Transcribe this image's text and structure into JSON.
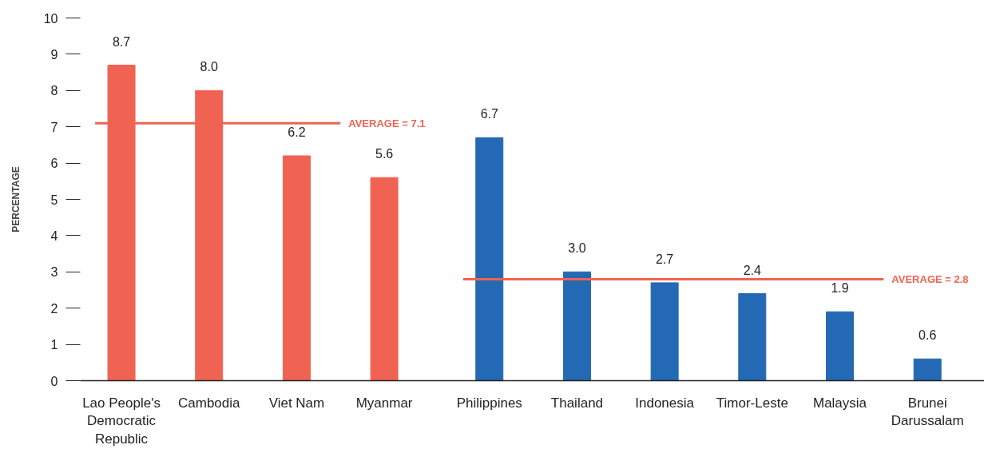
{
  "chart_data": {
    "type": "bar",
    "ylabel": "PERCENTAGE",
    "categories": [
      "Lao People's\nDemocratic\nRepublic",
      "Cambodia",
      "Viet Nam",
      "Myanmar",
      "Philippines",
      "Thailand",
      "Indonesia",
      "Timor-Leste",
      "Malaysia",
      "Brunei\nDarussalam"
    ],
    "series": [
      {
        "color": "#f06352",
        "values": [
          8.7,
          8.0,
          6.2,
          5.6,
          null,
          null,
          null,
          null,
          null,
          null
        ],
        "value_labels": [
          "8.7",
          "8.0",
          "6.2",
          "5.6",
          null,
          null,
          null,
          null,
          null,
          null
        ]
      },
      {
        "color": "#2469b3",
        "values": [
          null,
          null,
          null,
          null,
          6.7,
          3.0,
          2.7,
          2.4,
          1.9,
          0.6
        ],
        "value_labels": [
          null,
          null,
          null,
          null,
          "6.7",
          "3.0",
          "2.7",
          "2.4",
          "1.9",
          "0.6"
        ]
      }
    ],
    "ylim": [
      0,
      10
    ],
    "yticks": [
      0,
      1,
      2,
      3,
      4,
      5,
      6,
      7,
      8,
      9,
      10
    ],
    "ref_lines": [
      {
        "axis": "y",
        "value": 7.1,
        "label": "AVERAGE = 7.1",
        "color": "#f06352"
      },
      {
        "axis": "y",
        "value": 2.8,
        "label": "AVERAGE  = 2.8",
        "color": "#f06352"
      }
    ],
    "grid": false
  }
}
